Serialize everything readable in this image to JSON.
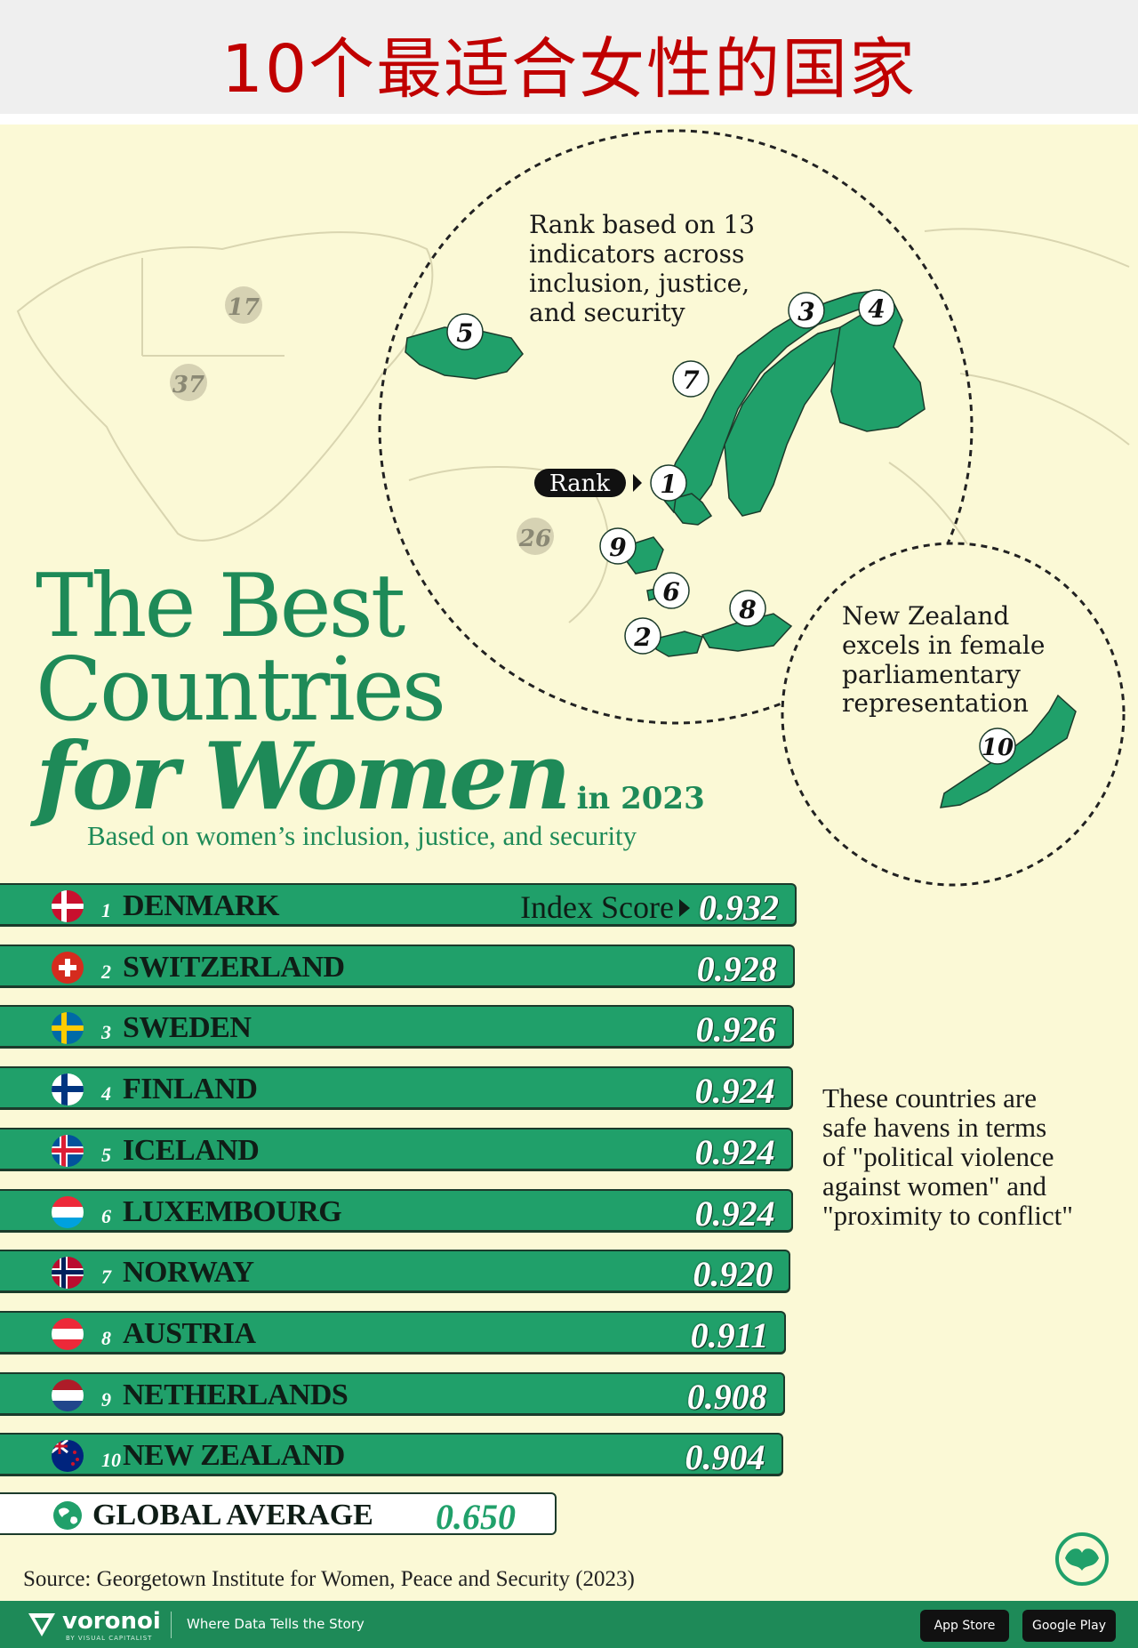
{
  "page_title": "10个最适合女性的国家",
  "heading": {
    "line1": "The Best",
    "line2": "Countries",
    "line3": "for Women",
    "year": "in 2023",
    "subtitle": "Based on women’s inclusion, justice, and security"
  },
  "map": {
    "callout_nordic": [
      "Rank based on 13",
      "indicators across",
      "inclusion, justice,",
      "and security"
    ],
    "callout_nz": [
      "New Zealand",
      "excels in female",
      "parliamentary",
      "representation"
    ],
    "rank_tag": "Rank",
    "map_ranks": [
      "1",
      "2",
      "3",
      "4",
      "5",
      "6",
      "7",
      "8",
      "9",
      "10"
    ],
    "other_ranks": [
      "17",
      "37",
      "26"
    ]
  },
  "index_label": "Index Score",
  "side_note": [
    "These countries are",
    "safe havens in terms",
    "of \"political violence",
    "against women\" and",
    "\"proximity to conflict\""
  ],
  "global_average": {
    "label": "GLOBAL AVERAGE",
    "value": "0.650"
  },
  "source": "Source: Georgetown Institute for Women, Peace and Security (2023)",
  "footer": {
    "brand": "voronoi",
    "brand_sub": "BY VISUAL CAPITALIST",
    "tagline": "Where Data Tells the Story",
    "app_store": "App Store",
    "google_play": "Google Play"
  },
  "colors": {
    "accent": "#20a06a",
    "title_red": "#c00000",
    "background": "#fbf9d6",
    "map_land": "#20a06a"
  },
  "chart_data": {
    "type": "bar",
    "title": "The Best Countries for Women in 2023",
    "subtitle": "Based on women’s inclusion, justice, and security",
    "categories": [
      "DENMARK",
      "SWITZERLAND",
      "SWEDEN",
      "FINLAND",
      "ICELAND",
      "LUXEMBOURG",
      "NORWAY",
      "AUSTRIA",
      "NETHERLANDS",
      "NEW ZEALAND"
    ],
    "ranks": [
      "1",
      "2",
      "3",
      "4",
      "5",
      "6",
      "7",
      "8",
      "9",
      "10"
    ],
    "values": [
      0.932,
      0.928,
      0.926,
      0.924,
      0.924,
      0.924,
      0.92,
      0.911,
      0.908,
      0.904
    ],
    "labels": [
      "0.932",
      "0.928",
      "0.926",
      "0.924",
      "0.924",
      "0.924",
      "0.920",
      "0.911",
      "0.908",
      "0.904"
    ],
    "flags": [
      "denmark-flag",
      "switzerland-flag",
      "sweden-flag",
      "finland-flag",
      "iceland-flag",
      "luxembourg-flag",
      "norway-flag",
      "austria-flag",
      "netherlands-flag",
      "new-zealand-flag"
    ],
    "global_average": 0.65,
    "orientation": "horizontal"
  }
}
